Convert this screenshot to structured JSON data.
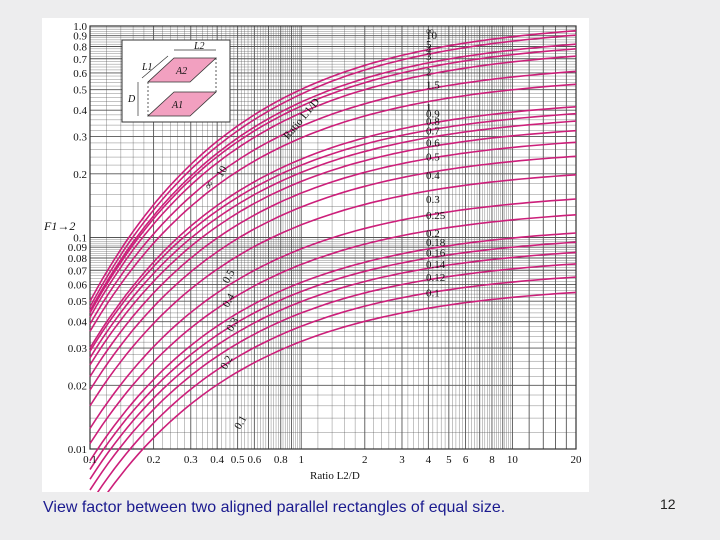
{
  "caption": "View factor between two aligned parallel rectangles of equal size.",
  "page_number": "12",
  "colors": {
    "curve": "#cc1f7a",
    "grid": "#555555",
    "inset_plate": "#f2a0c0",
    "background": "#ededee"
  },
  "chart_data": {
    "type": "line",
    "title": "",
    "xlabel": "Ratio L2/D",
    "ylabel": "F1→2",
    "x_scale": "log",
    "y_scale": "log",
    "xlim": [
      0.1,
      20
    ],
    "ylim": [
      0.01,
      1.0
    ],
    "grid": true,
    "x_ticks": [
      "0.1",
      "0.2",
      "0.3",
      "0.4",
      "0.5",
      "0.6",
      "0.8",
      "1",
      "2",
      "3",
      "4",
      "5",
      "6",
      "8",
      "10",
      "20"
    ],
    "y_ticks": [
      "1.0",
      "0.9",
      "0.8",
      "0.7",
      "0.6",
      "0.5",
      "0.4",
      "0.3",
      "0.2",
      "0.1",
      "0.09",
      "0.08",
      "0.07",
      "0.06",
      "0.05",
      "0.04",
      "0.03",
      "0.02",
      "0.01"
    ],
    "parameter_label": "Ratio L1/D",
    "series": [
      {
        "name": "∞",
        "values": [
          [
            0.1,
            0.05
          ],
          [
            20,
            0.95
          ]
        ]
      },
      {
        "name": "10",
        "values": [
          [
            0.1,
            0.047
          ],
          [
            20,
            0.905
          ]
        ]
      },
      {
        "name": "5",
        "values": [
          [
            0.1,
            0.045
          ],
          [
            20,
            0.82
          ]
        ]
      },
      {
        "name": "4",
        "values": [
          [
            0.1,
            0.044
          ],
          [
            20,
            0.78
          ]
        ]
      },
      {
        "name": "3",
        "values": [
          [
            0.1,
            0.042
          ],
          [
            20,
            0.72
          ]
        ]
      },
      {
        "name": "2",
        "values": [
          [
            0.1,
            0.039
          ],
          [
            20,
            0.61
          ]
        ]
      },
      {
        "name": "1.5",
        "values": [
          [
            0.1,
            0.036
          ],
          [
            20,
            0.53
          ]
        ]
      },
      {
        "name": "1",
        "values": [
          [
            0.1,
            0.03
          ],
          [
            20,
            0.415
          ]
        ]
      },
      {
        "name": "0.9",
        "values": [
          [
            0.1,
            0.029
          ],
          [
            20,
            0.385
          ]
        ]
      },
      {
        "name": "0.8",
        "values": [
          [
            0.1,
            0.027
          ],
          [
            20,
            0.355
          ]
        ]
      },
      {
        "name": "0.7",
        "values": [
          [
            0.1,
            0.025
          ],
          [
            20,
            0.32
          ]
        ]
      },
      {
        "name": "0.6",
        "values": [
          [
            0.1,
            0.022
          ],
          [
            20,
            0.282
          ]
        ]
      },
      {
        "name": "0.5",
        "values": [
          [
            0.1,
            0.019
          ],
          [
            20,
            0.242
          ]
        ]
      },
      {
        "name": "0.4",
        "values": [
          [
            0.1,
            0.016
          ],
          [
            20,
            0.198
          ]
        ]
      },
      {
        "name": "0.3",
        "values": [
          [
            0.1,
            0.0125
          ],
          [
            20,
            0.152
          ]
        ]
      },
      {
        "name": "0.25",
        "values": [
          [
            0.1,
            0.0106
          ],
          [
            20,
            0.128
          ]
        ]
      },
      {
        "name": "0.2",
        "values": [
          [
            0.1,
            0.0088
          ],
          [
            20,
            0.105
          ]
        ]
      },
      {
        "name": "0.18",
        "values": [
          [
            0.1,
            0.008
          ],
          [
            20,
            0.095
          ]
        ]
      },
      {
        "name": "0.16",
        "values": [
          [
            0.1,
            0.0072
          ],
          [
            20,
            0.085
          ]
        ]
      },
      {
        "name": "0.14",
        "values": [
          [
            0.1,
            0.0064
          ],
          [
            20,
            0.075
          ]
        ]
      },
      {
        "name": "0.12",
        "values": [
          [
            0.1,
            0.0055
          ],
          [
            20,
            0.065
          ]
        ]
      },
      {
        "name": "0.1",
        "values": [
          [
            0.1,
            0.0047
          ],
          [
            20,
            0.055
          ]
        ]
      }
    ],
    "diagonal_labels": [
      "∞",
      "10",
      "0.5",
      "0.4",
      "0.3",
      "0.2",
      "0.1"
    ],
    "inset": {
      "labels": [
        "L2",
        "L1",
        "A2",
        "D",
        "A1"
      ]
    }
  }
}
